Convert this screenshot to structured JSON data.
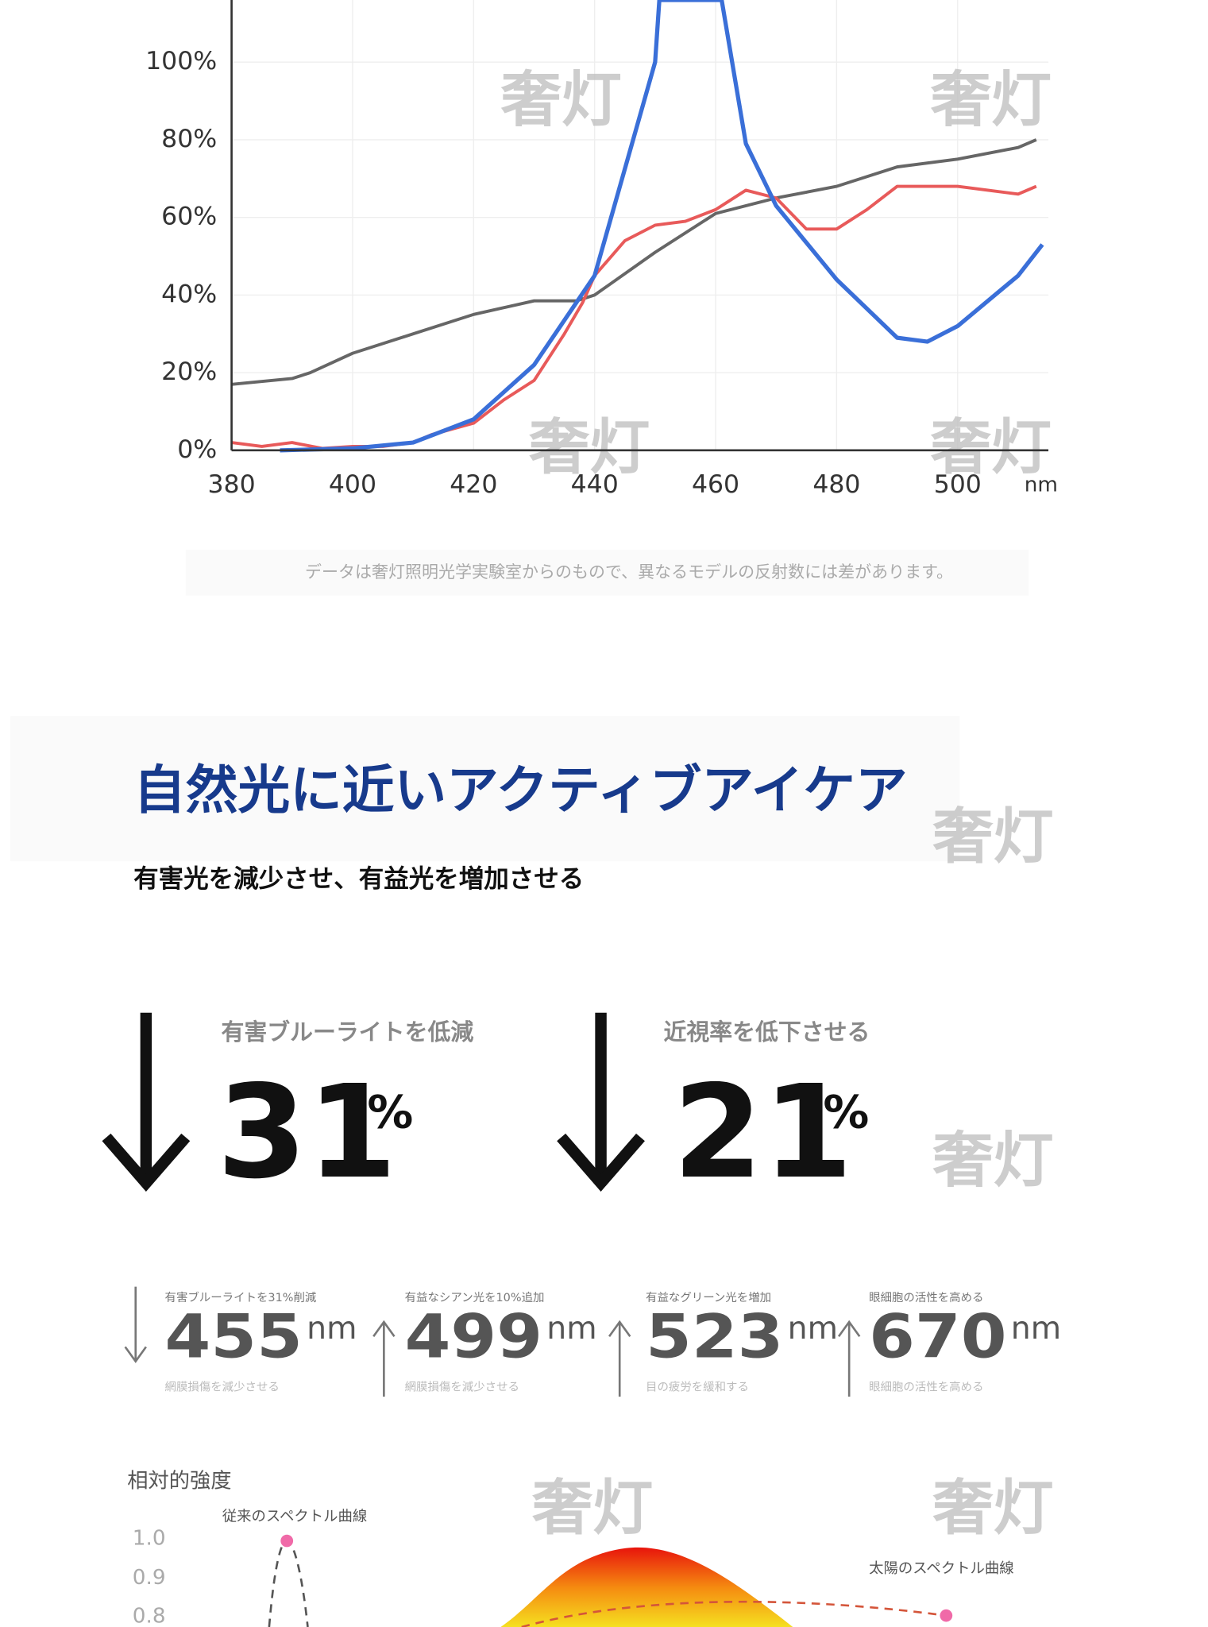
{
  "chart_data": {
    "type": "line",
    "xlim": [
      380,
      515
    ],
    "ylim": [
      0,
      116
    ],
    "xticks": [
      380,
      400,
      420,
      440,
      460,
      480,
      500
    ],
    "yticks": [
      {
        "value": 0,
        "label": "0%"
      },
      {
        "value": 20,
        "label": "20%"
      },
      {
        "value": 40,
        "label": "40%"
      },
      {
        "value": 60,
        "label": "60%"
      },
      {
        "value": 80,
        "label": "80%"
      },
      {
        "value": 100,
        "label": "100%"
      }
    ],
    "xlabel": "nm",
    "grid": true,
    "series": [
      {
        "color": "#666666",
        "x": [
          380,
          390,
          393,
          400,
          410,
          420,
          430,
          437,
          440,
          450,
          460,
          470,
          480,
          490,
          500,
          510,
          513
        ],
        "values": [
          17,
          18.5,
          20,
          25,
          30,
          35,
          38.5,
          38.5,
          40,
          51,
          61,
          65,
          68,
          73,
          75,
          78,
          80
        ]
      },
      {
        "color": "#e85a5a",
        "x": [
          380,
          385,
          390,
          395,
          400,
          405,
          410,
          413,
          420,
          425,
          430,
          435,
          438,
          440,
          445,
          450,
          455,
          460,
          465,
          470,
          475,
          480,
          485,
          490,
          495,
          500,
          505,
          510,
          513
        ],
        "values": [
          2,
          1,
          2,
          0.5,
          1,
          1,
          2,
          4,
          7,
          13,
          18,
          30,
          38,
          45,
          54,
          58,
          59,
          62,
          67,
          65,
          57,
          57,
          62,
          68,
          68,
          68,
          67,
          66,
          68
        ]
      },
      {
        "color": "#3a6fd8",
        "x": [
          388,
          400,
          410,
          420,
          430,
          440,
          450,
          450.7,
          461,
          465,
          470,
          480,
          490,
          495,
          500,
          510,
          514
        ],
        "values": [
          0,
          0.5,
          2,
          8,
          22,
          45,
          100,
          116,
          116,
          79,
          63,
          44,
          29,
          28,
          32,
          45,
          53
        ]
      }
    ]
  },
  "watermark": "奢灯",
  "caption": "データは奢灯照明光学実験室からのもので、異なるモデルの反射数には差があります。",
  "heading": {
    "title": "自然光に近いアクティブアイケア",
    "subtitle": "有害光を減少させ、有益光を増加させる"
  },
  "big_stats": [
    {
      "label": "有害ブルーライトを低減",
      "value": "31",
      "unit": "%"
    },
    {
      "label": "近視率を低下させる",
      "value": "21",
      "unit": "%"
    }
  ],
  "small_stats": [
    {
      "top": "有害ブルーライトを31%削減",
      "value": "455",
      "unit": "nm",
      "bottom": "網膜損傷を減少させる"
    },
    {
      "top": "有益なシアン光を10%追加",
      "value": "499",
      "unit": "nm",
      "bottom": "網膜損傷を減少させる"
    },
    {
      "top": "有益なグリーン光を増加",
      "value": "523",
      "unit": "nm",
      "bottom": "目の疲労を緩和する"
    },
    {
      "top": "眼細胞の活性を高める",
      "value": "670",
      "unit": "nm",
      "bottom": "眼細胞の活性を高める"
    }
  ],
  "spectrum": {
    "ylabel": "相対的強度",
    "yticks": [
      "1.0",
      "0.9",
      "0.8"
    ],
    "label_old": "従来のスペクトル曲線",
    "label_sun": "太陽のスペクトル曲線"
  }
}
